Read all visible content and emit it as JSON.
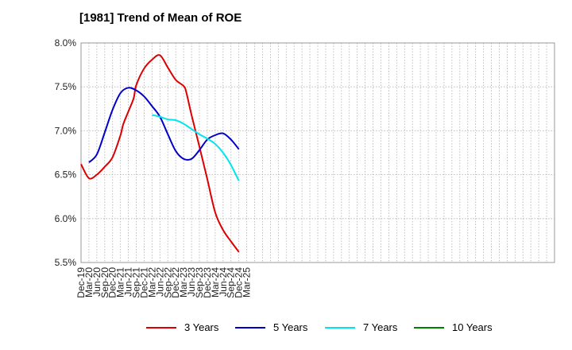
{
  "chart_data": {
    "type": "line",
    "title": "[1981]  Trend of Mean of ROE",
    "xlabel": "",
    "ylabel": "",
    "x_tick_labels": [
      "Dec-19",
      "Mar-20",
      "Jun-20",
      "Sep-20",
      "Dec-20",
      "Mar-21",
      "Jun-21",
      "Sep-21",
      "Dec-21",
      "Mar-22",
      "Jun-22",
      "Sep-22",
      "Dec-22",
      "Mar-23",
      "Jun-23",
      "Sep-23",
      "Dec-23",
      "Mar-24",
      "Jun-24",
      "Sep-24",
      "Dec-24",
      "Mar-25"
    ],
    "y_tick_labels": [
      "8.0%",
      "7.5%",
      "7.0%",
      "6.5%",
      "6.0%",
      "5.5%"
    ],
    "y_ticks": [
      8.0,
      7.5,
      7.0,
      6.5,
      6.0,
      5.5
    ],
    "ylim": [
      5.5,
      8.0
    ],
    "x_count": 61,
    "grid": true,
    "legend_position": "bottom",
    "series": [
      {
        "name": "3 Years",
        "color": "#dd0000",
        "x": [
          "Dec-19",
          "Mar-20",
          "Jun-20",
          "Sep-20",
          "Dec-20",
          "Mar-21",
          "Apr-21",
          "Jun-21",
          "Aug-21",
          "Sep-21",
          "Dec-21",
          "Mar-22",
          "Jun-22",
          "Sep-22",
          "Dec-22",
          "Mar-23",
          "Apr-23",
          "Jun-23",
          "Sep-23",
          "Dec-23",
          "Mar-24",
          "Jun-24",
          "Sep-24",
          "Dec-24"
        ],
        "values": [
          6.62,
          6.46,
          6.5,
          6.59,
          6.7,
          6.95,
          7.07,
          7.22,
          7.37,
          7.52,
          7.71,
          7.81,
          7.86,
          7.72,
          7.58,
          7.51,
          7.44,
          7.18,
          6.82,
          6.45,
          6.07,
          5.87,
          5.74,
          5.62
        ]
      },
      {
        "name": "5 Years",
        "color": "#0000cc",
        "x": [
          "Mar-20",
          "Jun-20",
          "Sep-20",
          "Dec-20",
          "Mar-21",
          "Jun-21",
          "Sep-21",
          "Dec-21",
          "Mar-22",
          "Jun-22",
          "Sep-22",
          "Dec-22",
          "Mar-23",
          "Jun-23",
          "Sep-23",
          "Dec-23",
          "Mar-24",
          "Jun-24",
          "Sep-24",
          "Dec-24"
        ],
        "values": [
          6.64,
          6.73,
          6.98,
          7.24,
          7.43,
          7.49,
          7.46,
          7.39,
          7.28,
          7.16,
          6.96,
          6.77,
          6.68,
          6.68,
          6.78,
          6.9,
          6.95,
          6.97,
          6.9,
          6.79
        ]
      },
      {
        "name": "7 Years",
        "color": "#00e5ee",
        "x": [
          "Mar-22",
          "Jun-22",
          "Sep-22",
          "Dec-22",
          "Mar-23",
          "Jun-23",
          "Sep-23",
          "Dec-23",
          "Mar-24",
          "Jun-24",
          "Sep-24",
          "Dec-24"
        ],
        "values": [
          7.18,
          7.16,
          7.13,
          7.12,
          7.08,
          7.02,
          6.96,
          6.91,
          6.85,
          6.75,
          6.61,
          6.43
        ]
      },
      {
        "name": "10 Years",
        "color": "#008000",
        "x": [],
        "values": []
      }
    ]
  }
}
